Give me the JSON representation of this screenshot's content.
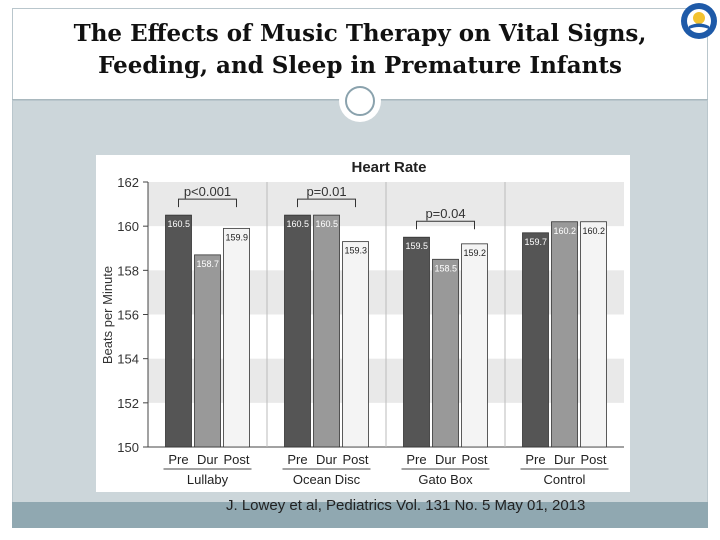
{
  "slide": {
    "title_line1": "The Effects of Music Therapy on Vital Signs,",
    "title_line2": "Feeding, and Sleep in Premature Infants",
    "citation": "J. Lowey et al, Pediatrics Vol. 131 No. 5 May 01, 2013",
    "logo_icon": "university-seal-icon",
    "divider_icon": "circle-ornament-icon"
  },
  "colors": {
    "pre": "#555555",
    "dur": "#999999",
    "post": "#f4f4f4",
    "band": "#e9e9e9"
  },
  "chart_data": {
    "type": "bar",
    "title": "Heart Rate",
    "ylabel": "Beats per Minute",
    "ylim": [
      150,
      162
    ],
    "yticks": [
      "150",
      "152",
      "154",
      "156",
      "158",
      "160",
      "162"
    ],
    "groups": [
      {
        "name": "Lullaby",
        "pvalue": "p<0.001",
        "bars": [
          {
            "label": "Pre",
            "value": 160.5,
            "text": "160.5"
          },
          {
            "label": "Dur",
            "value": 158.7,
            "text": "158.7"
          },
          {
            "label": "Post",
            "value": 159.9,
            "text": "159.9"
          }
        ]
      },
      {
        "name": "Ocean Disc",
        "pvalue": "p=0.01",
        "bars": [
          {
            "label": "Pre",
            "value": 160.5,
            "text": "160.5"
          },
          {
            "label": "Dur",
            "value": 160.5,
            "text": "160.5"
          },
          {
            "label": "Post",
            "value": 159.3,
            "text": "159.3"
          }
        ]
      },
      {
        "name": "Gato Box",
        "pvalue": "p=0.04",
        "bars": [
          {
            "label": "Pre",
            "value": 159.5,
            "text": "159.5"
          },
          {
            "label": "Dur",
            "value": 158.5,
            "text": "158.5"
          },
          {
            "label": "Post",
            "value": 159.2,
            "text": "159.2"
          }
        ]
      },
      {
        "name": "Control",
        "pvalue": "",
        "bars": [
          {
            "label": "Pre",
            "value": 159.7,
            "text": "159.7"
          },
          {
            "label": "Dur",
            "value": 160.2,
            "text": "160.2"
          },
          {
            "label": "Post",
            "value": 160.2,
            "text": "160.2"
          }
        ]
      }
    ]
  }
}
